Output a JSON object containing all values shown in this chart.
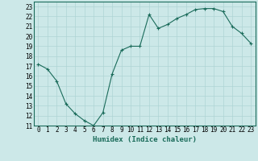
{
  "x": [
    0,
    1,
    2,
    3,
    4,
    5,
    6,
    7,
    8,
    9,
    10,
    11,
    12,
    13,
    14,
    15,
    16,
    17,
    18,
    19,
    20,
    21,
    22,
    23
  ],
  "y": [
    17.2,
    16.7,
    15.5,
    13.2,
    12.2,
    11.5,
    11.0,
    12.3,
    16.2,
    18.6,
    19.0,
    19.0,
    22.2,
    20.8,
    21.2,
    21.8,
    22.2,
    22.7,
    22.8,
    22.8,
    22.5,
    21.0,
    20.3,
    19.3
  ],
  "line_color": "#1a6b5a",
  "marker": "+",
  "bg_color": "#cce8e8",
  "grid_color": "#afd4d4",
  "xlabel": "Humidex (Indice chaleur)",
  "ylabel_ticks": [
    11,
    12,
    13,
    14,
    15,
    16,
    17,
    18,
    19,
    20,
    21,
    22,
    23
  ],
  "xlim": [
    -0.5,
    23.5
  ],
  "ylim": [
    11,
    23.5
  ],
  "figsize": [
    3.2,
    2.0
  ],
  "dpi": 100,
  "tick_fontsize": 5.5,
  "xlabel_fontsize": 6.5
}
